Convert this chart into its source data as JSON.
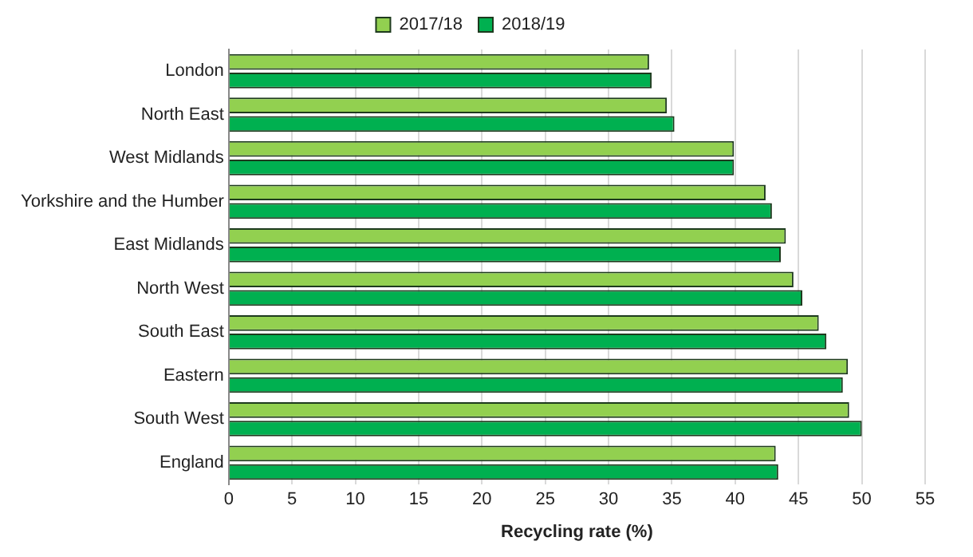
{
  "chart_data": {
    "type": "bar",
    "orientation": "horizontal",
    "xlabel": "Recycling rate (%)",
    "categories": [
      "London",
      "North East",
      "West Midlands",
      "Yorkshire and the Humber",
      "East Midlands",
      "North West",
      "South East",
      "Eastern",
      "South West",
      "England"
    ],
    "series": [
      {
        "name": "2017/18",
        "color": "#92d050",
        "values": [
          33.2,
          34.6,
          39.9,
          42.4,
          44.0,
          44.6,
          46.6,
          48.9,
          49.0,
          43.2
        ]
      },
      {
        "name": "2018/19",
        "color": "#00b050",
        "values": [
          33.4,
          35.2,
          39.9,
          42.9,
          43.6,
          45.3,
          47.2,
          48.5,
          50.0,
          43.4
        ]
      }
    ],
    "xlim": [
      0,
      55
    ],
    "xticks": [
      0,
      5,
      10,
      15,
      20,
      25,
      30,
      35,
      40,
      45,
      50,
      55
    ],
    "grid": "x",
    "legend": "top"
  }
}
